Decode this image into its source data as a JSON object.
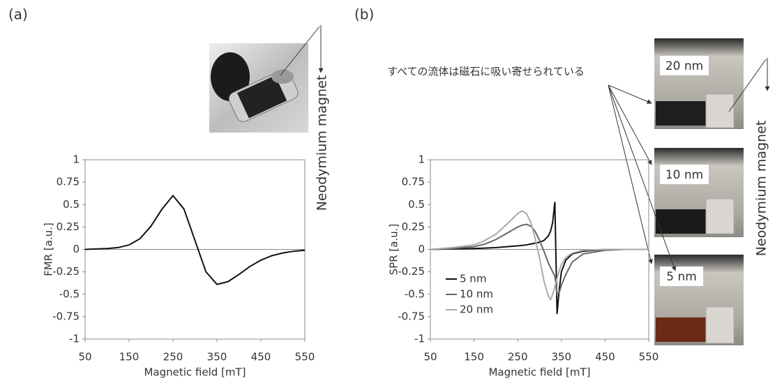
{
  "chart_data": [
    {
      "type": "line",
      "ylabel": "FMR [a.u.]",
      "xlabel": "Magnetic field [mT]",
      "x": [
        50,
        75,
        100,
        125,
        150,
        175,
        200,
        225,
        250,
        275,
        300,
        325,
        350,
        375,
        400,
        425,
        450,
        475,
        500,
        525,
        550
      ],
      "values": [
        0,
        0.005,
        0.01,
        0.02,
        0.05,
        0.12,
        0.26,
        0.45,
        0.6,
        0.45,
        0.1,
        -0.25,
        -0.39,
        -0.36,
        -0.28,
        -0.19,
        -0.12,
        -0.07,
        -0.04,
        -0.02,
        -0.01
      ],
      "color": "#111111",
      "xlim": [
        50,
        550
      ],
      "xticks": [
        50,
        150,
        250,
        350,
        450,
        550
      ],
      "ylim": [
        -1,
        1
      ],
      "yticks": [
        1,
        0.75,
        0.5,
        0.25,
        0,
        -0.25,
        -0.5,
        -0.75,
        -1
      ]
    },
    {
      "type": "line",
      "ylabel": "SPR [a.u.]",
      "xlabel": "Magnetic field [mT]",
      "x": [
        50,
        100,
        150,
        175,
        200,
        225,
        250,
        260,
        270,
        280,
        290,
        300,
        310,
        320,
        325,
        330,
        335,
        338,
        340,
        345,
        350,
        360,
        375,
        400,
        450,
        500,
        550
      ],
      "series": [
        {
          "name": "5 nm",
          "color": "#111111",
          "values": [
            0,
            0.005,
            0.01,
            0.015,
            0.02,
            0.03,
            0.04,
            0.045,
            0.05,
            0.06,
            0.07,
            0.08,
            0.1,
            0.15,
            0.2,
            0.3,
            0.53,
            -0.2,
            -0.72,
            -0.45,
            -0.25,
            -0.12,
            -0.05,
            -0.02,
            0,
            0,
            0
          ]
        },
        {
          "name": "10 nm",
          "color": "#666666",
          "values": [
            0,
            0.01,
            0.03,
            0.06,
            0.11,
            0.18,
            0.25,
            0.27,
            0.28,
            0.26,
            0.2,
            0.1,
            -0.02,
            -0.15,
            -0.2,
            -0.25,
            -0.3,
            -0.4,
            -0.5,
            -0.48,
            -0.4,
            -0.28,
            -0.14,
            -0.05,
            -0.01,
            0,
            0
          ]
        },
        {
          "name": "20 nm",
          "color": "#aaaaaa",
          "values": [
            0,
            0.02,
            0.05,
            0.1,
            0.17,
            0.28,
            0.4,
            0.43,
            0.4,
            0.3,
            0.12,
            -0.1,
            -0.35,
            -0.52,
            -0.56,
            -0.5,
            -0.42,
            -0.36,
            -0.32,
            -0.24,
            -0.17,
            -0.09,
            -0.04,
            -0.01,
            0,
            0,
            0
          ]
        }
      ],
      "legend": "lower left",
      "xlim": [
        50,
        550
      ],
      "xticks": [
        50,
        150,
        250,
        350,
        450,
        550
      ],
      "ylim": [
        -1,
        1
      ],
      "yticks": [
        1,
        0.75,
        0.5,
        0.25,
        0,
        -0.25,
        -0.5,
        -0.75,
        -1
      ]
    }
  ],
  "figure": {
    "panel_a": "(a)",
    "panel_b": "(b)",
    "magnet_a": "Neodymium magnet",
    "magnet_b": "Neodymium magnet",
    "note_b": "すべての流体は磁石に吸い寄せられている",
    "photo_labels": [
      "20 nm",
      "10 nm",
      "5 nm"
    ]
  }
}
